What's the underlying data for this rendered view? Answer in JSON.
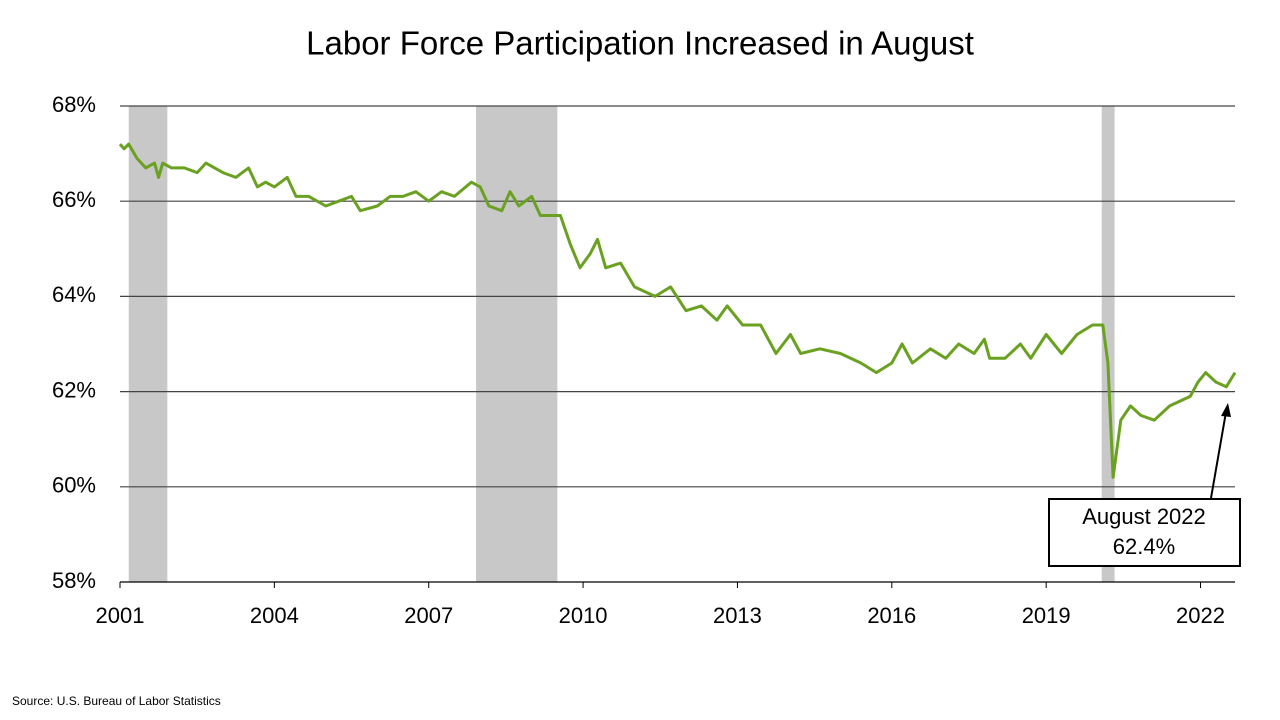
{
  "chart_data": {
    "type": "line",
    "title": "Labor Force Participation Increased in August",
    "source": "Source: U.S. Bureau of Labor Statistics",
    "x": [
      2001.0,
      2001.08,
      2001.17,
      2001.33,
      2001.5,
      2001.67,
      2001.75,
      2001.83,
      2002.0,
      2002.25,
      2002.5,
      2002.67,
      2003.0,
      2003.25,
      2003.5,
      2003.67,
      2003.83,
      2004.0,
      2004.25,
      2004.42,
      2004.67,
      2005.0,
      2005.25,
      2005.5,
      2005.67,
      2006.0,
      2006.25,
      2006.5,
      2006.75,
      2007.0,
      2007.25,
      2007.5,
      2007.83,
      2008.0,
      2008.17,
      2008.42,
      2008.58,
      2008.75,
      2009.0,
      2009.17,
      2009.56,
      2009.75,
      2009.94,
      2010.14,
      2010.28,
      2010.44,
      2010.73,
      2011.0,
      2011.4,
      2011.7,
      2012.0,
      2012.3,
      2012.6,
      2012.8,
      2013.1,
      2013.45,
      2013.75,
      2014.03,
      2014.23,
      2014.6,
      2015.0,
      2015.4,
      2015.7,
      2016.0,
      2016.2,
      2016.4,
      2016.75,
      2017.05,
      2017.3,
      2017.6,
      2017.8,
      2017.9,
      2018.2,
      2018.5,
      2018.7,
      2019.0,
      2019.3,
      2019.6,
      2019.9,
      2020.1,
      2020.2,
      2020.3,
      2020.45,
      2020.64,
      2020.84,
      2021.1,
      2021.4,
      2021.8,
      2021.95,
      2022.1,
      2022.3,
      2022.5,
      2022.67
    ],
    "series": [
      {
        "color": "#6aa121",
        "values": [
          67.2,
          67.1,
          67.2,
          66.9,
          66.7,
          66.8,
          66.5,
          66.8,
          66.7,
          66.7,
          66.6,
          66.8,
          66.6,
          66.5,
          66.7,
          66.3,
          66.4,
          66.3,
          66.5,
          66.1,
          66.1,
          65.9,
          66.0,
          66.1,
          65.8,
          65.9,
          66.1,
          66.1,
          66.2,
          66.0,
          66.2,
          66.1,
          66.4,
          66.3,
          65.9,
          65.8,
          66.2,
          65.9,
          66.1,
          65.7,
          65.7,
          65.1,
          64.6,
          64.9,
          65.2,
          64.6,
          64.7,
          64.2,
          64.0,
          64.2,
          63.7,
          63.8,
          63.5,
          63.8,
          63.4,
          63.4,
          62.8,
          63.2,
          62.8,
          62.9,
          62.8,
          62.6,
          62.4,
          62.6,
          63.0,
          62.6,
          62.9,
          62.7,
          63.0,
          62.8,
          63.1,
          62.7,
          62.7,
          63.0,
          62.7,
          63.2,
          62.8,
          63.2,
          63.4,
          63.4,
          62.6,
          60.2,
          61.4,
          61.7,
          61.5,
          61.4,
          61.7,
          61.9,
          62.2,
          62.4,
          62.2,
          62.1,
          62.4
        ]
      }
    ],
    "recessions": [
      [
        2001.17,
        2001.92
      ],
      [
        2007.92,
        2009.5
      ],
      [
        2020.08,
        2020.33
      ]
    ],
    "recession_color": "#c8c8c8",
    "xlim": [
      2001,
      2022.67
    ],
    "xticks": [
      2001,
      2004,
      2007,
      2010,
      2013,
      2016,
      2019,
      2022
    ],
    "ylim": [
      58,
      68
    ],
    "yticks": [
      {
        "value": 58,
        "label": "58%"
      },
      {
        "value": 60,
        "label": "60%"
      },
      {
        "value": 62,
        "label": "62%"
      },
      {
        "value": 64,
        "label": "64%"
      },
      {
        "value": 66,
        "label": "66%"
      },
      {
        "value": 68,
        "label": "68%"
      }
    ],
    "grid": true,
    "annotation": {
      "lines": [
        "August 2022",
        "62.4%"
      ]
    }
  }
}
